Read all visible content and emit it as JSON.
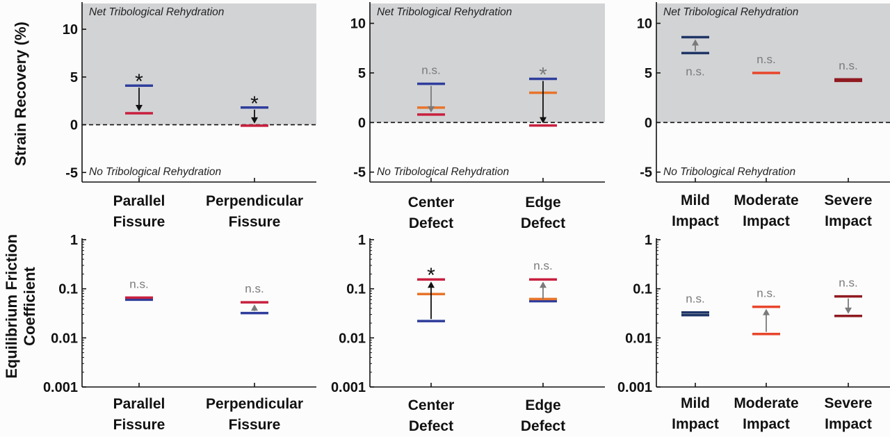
{
  "figure": {
    "top_ylabel": "Strain Recovery (%)",
    "bottom_ylabel_line1": "Equilibrium Friction",
    "bottom_ylabel_line2": "Coefficient",
    "net_label": "Net Tribological Rehydration",
    "no_label": "No Tribological Rehydration"
  },
  "colors": {
    "blue": "#2e3d9c",
    "red": "#c8203e",
    "orange": "#e8742a",
    "navy": "#1f3566",
    "bright_red": "#e8452b",
    "dark_red": "#8f1a20",
    "arrow_black": "#111111",
    "arrow_gray": "#7a7a7a",
    "shade": "#d2d3d5"
  },
  "chart_data": [
    {
      "type": "scatter",
      "panel": "top-left",
      "categories": [
        [
          "Parallel",
          "Fissure"
        ],
        [
          "Perpendicular",
          "Fissure"
        ]
      ],
      "ylim": [
        -6,
        12.7
      ],
      "yticks": [
        -5,
        0,
        5,
        10
      ],
      "shaded_above_zero": true,
      "groups": [
        {
          "markers": [
            {
              "y": 4.1,
              "color": "blue"
            },
            {
              "y": 1.2,
              "color": "red"
            }
          ],
          "arrow": {
            "from": 4.1,
            "to": 1.2,
            "color": "arrow_black"
          },
          "annotation": {
            "text": "*",
            "color": "arrow_black"
          }
        },
        {
          "markers": [
            {
              "y": 1.8,
              "color": "blue"
            },
            {
              "y": -0.1,
              "color": "red"
            }
          ],
          "arrow": {
            "from": 1.8,
            "to": -0.1,
            "color": "arrow_black"
          },
          "annotation": {
            "text": "*",
            "color": "arrow_black"
          }
        }
      ]
    },
    {
      "type": "scatter",
      "panel": "top-middle",
      "categories": [
        [
          "Center",
          "Defect"
        ],
        [
          "Edge",
          "Defect"
        ]
      ],
      "ylim": [
        -6,
        12
      ],
      "yticks": [
        -5,
        0,
        5,
        10
      ],
      "shaded_above_zero": true,
      "groups": [
        {
          "markers": [
            {
              "y": 3.9,
              "color": "blue"
            },
            {
              "y": 1.5,
              "color": "orange"
            },
            {
              "y": 0.8,
              "color": "red"
            }
          ],
          "arrow": {
            "from": 3.9,
            "to": 0.8,
            "color": "arrow_gray"
          },
          "annotation": {
            "text": "n.s.",
            "color": "arrow_gray"
          }
        },
        {
          "markers": [
            {
              "y": 4.4,
              "color": "blue"
            },
            {
              "y": 3.0,
              "color": "orange"
            },
            {
              "y": -0.3,
              "color": "red"
            }
          ],
          "arrow": {
            "from": 4.4,
            "to": -0.3,
            "color": "arrow_black"
          },
          "annotation": {
            "text": "*",
            "color": "arrow_gray"
          }
        }
      ]
    },
    {
      "type": "scatter",
      "panel": "top-right",
      "categories": [
        [
          "Mild",
          "Impact"
        ],
        [
          "Moderate",
          "Impact"
        ],
        [
          "Severe",
          "Impact"
        ]
      ],
      "ylim": [
        -6,
        12
      ],
      "yticks": [
        -5,
        0,
        5,
        10
      ],
      "shaded_above_zero": true,
      "groups": [
        {
          "markers": [
            {
              "y": 7.0,
              "color": "navy"
            },
            {
              "y": 8.6,
              "color": "navy"
            }
          ],
          "arrow": {
            "from": 7.0,
            "to": 8.6,
            "color": "arrow_gray"
          },
          "annotation": {
            "text": "n.s.",
            "color": "arrow_gray",
            "position": "below"
          }
        },
        {
          "markers": [
            {
              "y": 5.0,
              "color": "bright_red"
            }
          ],
          "annotation": {
            "text": "n.s.",
            "color": "arrow_gray"
          }
        },
        {
          "markers": [
            {
              "y": 4.35,
              "color": "dark_red"
            },
            {
              "y": 4.2,
              "color": "dark_red"
            }
          ],
          "annotation": {
            "text": "n.s.",
            "color": "arrow_gray"
          }
        }
      ]
    },
    {
      "type": "scatter",
      "panel": "bottom-left",
      "yscale": "log",
      "categories": [
        [
          "Parallel",
          "Fissure"
        ],
        [
          "Perpendicular",
          "Fissure"
        ]
      ],
      "ylim": [
        0.001,
        1
      ],
      "yticks": [
        0.001,
        0.01,
        0.1,
        1
      ],
      "yticklabels": [
        "0.001",
        "0.01",
        "0.1",
        "1"
      ],
      "groups": [
        {
          "markers": [
            {
              "y": 0.06,
              "color": "blue"
            },
            {
              "y": 0.066,
              "color": "red"
            }
          ],
          "annotation": {
            "text": "n.s.",
            "color": "arrow_gray"
          }
        },
        {
          "markers": [
            {
              "y": 0.032,
              "color": "blue"
            },
            {
              "y": 0.053,
              "color": "red"
            }
          ],
          "arrow": {
            "from": 0.032,
            "to": 0.053,
            "color": "arrow_gray"
          },
          "annotation": {
            "text": "n.s.",
            "color": "arrow_gray"
          }
        }
      ]
    },
    {
      "type": "scatter",
      "panel": "bottom-middle",
      "yscale": "log",
      "categories": [
        [
          "Center",
          "Defect"
        ],
        [
          "Edge",
          "Defect"
        ]
      ],
      "ylim": [
        0.001,
        1
      ],
      "yticks": [
        0.001,
        0.01,
        0.1,
        1
      ],
      "yticklabels": [
        "0.001",
        "0.01",
        "0.1",
        "1"
      ],
      "groups": [
        {
          "markers": [
            {
              "y": 0.022,
              "color": "blue"
            },
            {
              "y": 0.078,
              "color": "orange"
            },
            {
              "y": 0.155,
              "color": "red"
            }
          ],
          "arrow": {
            "from": 0.022,
            "to": 0.155,
            "color": "arrow_black"
          },
          "annotation": {
            "text": "*",
            "color": "arrow_black"
          }
        },
        {
          "markers": [
            {
              "y": 0.056,
              "color": "blue"
            },
            {
              "y": 0.062,
              "color": "orange"
            },
            {
              "y": 0.155,
              "color": "red"
            }
          ],
          "arrow": {
            "from": 0.056,
            "to": 0.155,
            "color": "arrow_gray"
          },
          "annotation": {
            "text": "n.s.",
            "color": "arrow_gray"
          }
        }
      ]
    },
    {
      "type": "scatter",
      "panel": "bottom-right",
      "yscale": "log",
      "categories": [
        [
          "Mild",
          "Impact"
        ],
        [
          "Moderate",
          "Impact"
        ],
        [
          "Severe",
          "Impact"
        ]
      ],
      "ylim": [
        0.001,
        1
      ],
      "yticks": [
        0.001,
        0.01,
        0.1,
        1
      ],
      "yticklabels": [
        "0.001",
        "0.01",
        "0.1",
        "1"
      ],
      "groups": [
        {
          "markers": [
            {
              "y": 0.029,
              "color": "navy"
            },
            {
              "y": 0.033,
              "color": "navy"
            }
          ],
          "annotation": {
            "text": "n.s.",
            "color": "arrow_gray"
          }
        },
        {
          "markers": [
            {
              "y": 0.012,
              "color": "bright_red"
            },
            {
              "y": 0.043,
              "color": "bright_red"
            }
          ],
          "arrow": {
            "from": 0.012,
            "to": 0.043,
            "color": "arrow_gray"
          },
          "annotation": {
            "text": "n.s.",
            "color": "arrow_gray"
          }
        },
        {
          "markers": [
            {
              "y": 0.07,
              "color": "dark_red"
            },
            {
              "y": 0.028,
              "color": "dark_red"
            }
          ],
          "arrow": {
            "from": 0.07,
            "to": 0.028,
            "color": "arrow_gray"
          },
          "annotation": {
            "text": "n.s.",
            "color": "arrow_gray"
          }
        }
      ]
    }
  ]
}
